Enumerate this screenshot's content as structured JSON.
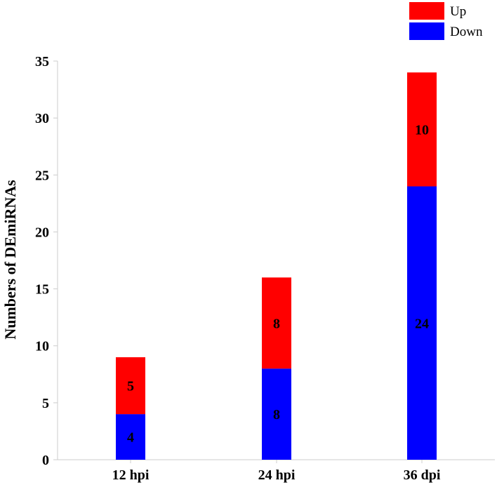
{
  "chart_data": {
    "type": "bar",
    "stacked": true,
    "categories": [
      "12 hpi",
      "24 hpi",
      "36 dpi"
    ],
    "series": [
      {
        "name": "Down",
        "color": "#0000ff",
        "values": [
          4,
          8,
          24
        ]
      },
      {
        "name": "Up",
        "color": "#ff0000",
        "values": [
          5,
          8,
          10
        ]
      }
    ],
    "ylabel": "Numbers of DEmiRNAs",
    "xlabel": "",
    "ylim": [
      0,
      35
    ],
    "yticks": [
      0,
      5,
      10,
      15,
      20,
      25,
      30,
      35
    ],
    "grid": false,
    "legend_position": "top-right",
    "legend_order": [
      "Up",
      "Down"
    ]
  }
}
